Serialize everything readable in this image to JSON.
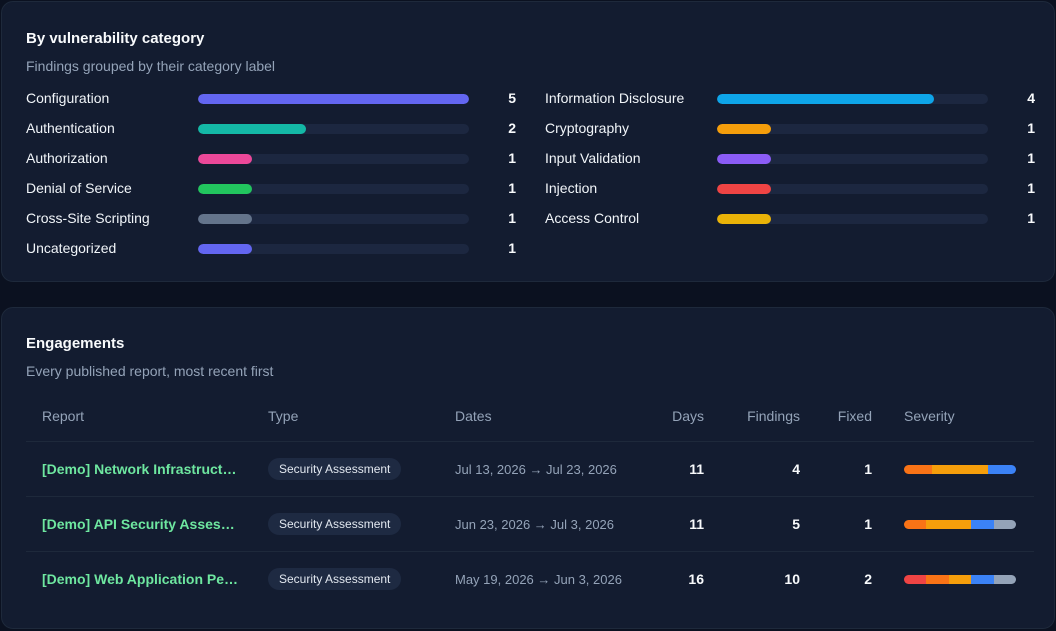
{
  "categories_card": {
    "title": "By vulnerability category",
    "subtitle": "Findings grouped by their category label",
    "max": 5,
    "left": [
      {
        "label": "Configuration",
        "count": "5",
        "value": 5,
        "color": "#6366f1"
      },
      {
        "label": "Authentication",
        "count": "2",
        "value": 2,
        "color": "#14b8a6"
      },
      {
        "label": "Authorization",
        "count": "1",
        "value": 1,
        "color": "#ec4899"
      },
      {
        "label": "Denial of Service",
        "count": "1",
        "value": 1,
        "color": "#22c55e"
      },
      {
        "label": "Cross-Site Scripting",
        "count": "1",
        "value": 1,
        "color": "#64748b"
      },
      {
        "label": "Uncategorized",
        "count": "1",
        "value": 1,
        "color": "#6366f1"
      }
    ],
    "right": [
      {
        "label": "Information Disclosure",
        "count": "4",
        "value": 4,
        "color": "#0ea5e9"
      },
      {
        "label": "Cryptography",
        "count": "1",
        "value": 1,
        "color": "#f59e0b"
      },
      {
        "label": "Input Validation",
        "count": "1",
        "value": 1,
        "color": "#8b5cf6"
      },
      {
        "label": "Injection",
        "count": "1",
        "value": 1,
        "color": "#ef4444"
      },
      {
        "label": "Access Control",
        "count": "1",
        "value": 1,
        "color": "#eab308"
      }
    ]
  },
  "engagements_card": {
    "title": "Engagements",
    "subtitle": "Every published report, most recent first",
    "columns": {
      "report": "Report",
      "type": "Type",
      "dates": "Dates",
      "days": "Days",
      "findings": "Findings",
      "fixed": "Fixed",
      "severity": "Severity"
    },
    "severity_colors": {
      "critical": "#ef4444",
      "high": "#f97316",
      "medium": "#f59e0b",
      "low": "#3b82f6",
      "info": "#94a3b8"
    },
    "rows": [
      {
        "report": "[Demo] Network Infrastructure Assessment",
        "type": "Security Assessment",
        "dates": "Jul 13, 2026 → Jul 23, 2026",
        "days": "11",
        "findings": "4",
        "fixed": "1",
        "severity": {
          "critical": 0,
          "high": 1,
          "medium": 2,
          "low": 1,
          "info": 0
        }
      },
      {
        "report": "[Demo] API Security Assessment",
        "type": "Security Assessment",
        "dates": "Jun 23, 2026 → Jul 3, 2026",
        "days": "11",
        "findings": "5",
        "fixed": "1",
        "severity": {
          "critical": 0,
          "high": 1,
          "medium": 2,
          "low": 1,
          "info": 1
        }
      },
      {
        "report": "[Demo] Web Application Penetration Test",
        "type": "Security Assessment",
        "dates": "May 19, 2026 → Jun 3, 2026",
        "days": "16",
        "findings": "10",
        "fixed": "2",
        "severity": {
          "critical": 2,
          "high": 2,
          "medium": 2,
          "low": 2,
          "info": 2
        }
      }
    ]
  }
}
